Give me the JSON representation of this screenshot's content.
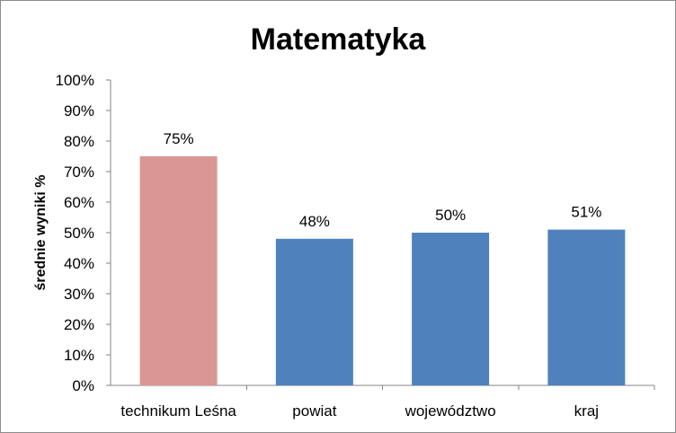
{
  "chart_data": {
    "type": "bar",
    "title": "Matematyka",
    "xlabel": "",
    "ylabel": "średnie wyniki %",
    "categories": [
      "technikum Leśna",
      "powiat",
      "województwo",
      "kraj"
    ],
    "values": [
      75,
      48,
      50,
      51
    ],
    "data_labels": [
      "75%",
      "48%",
      "50%",
      "51%"
    ],
    "bar_colors": [
      "#D99694",
      "#4F81BD",
      "#4F81BD",
      "#4F81BD"
    ],
    "ylim": [
      0,
      100
    ],
    "yticks": [
      0,
      10,
      20,
      30,
      40,
      50,
      60,
      70,
      80,
      90,
      100
    ],
    "ytick_labels": [
      "0%",
      "10%",
      "20%",
      "30%",
      "40%",
      "50%",
      "60%",
      "70%",
      "80%",
      "90%",
      "100%"
    ],
    "grid": false,
    "legend": "none"
  }
}
